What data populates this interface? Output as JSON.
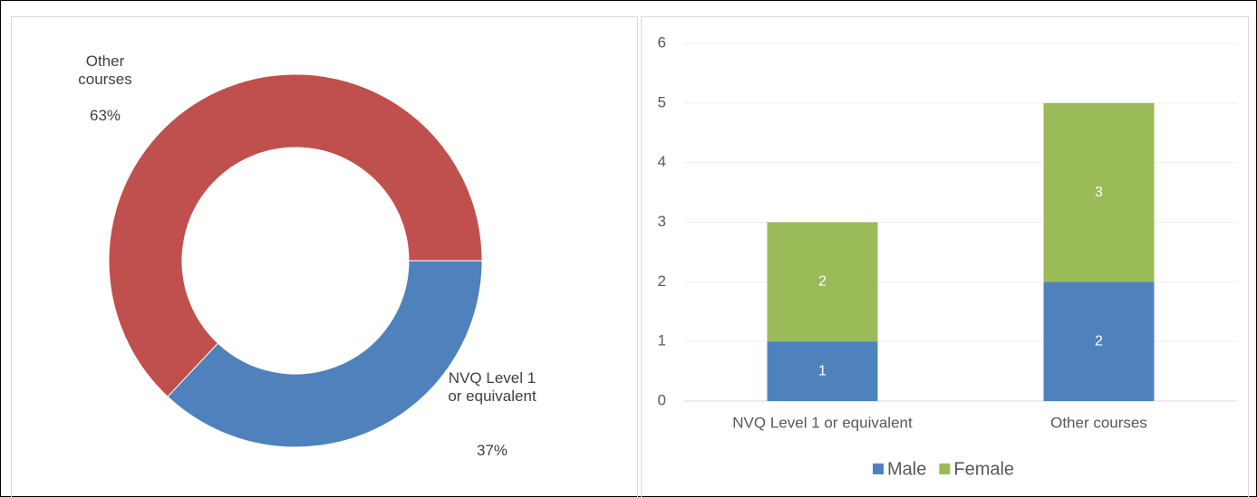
{
  "chart_data": [
    {
      "type": "donut",
      "categories": [
        "NVQ Level 1 or equivalent",
        "Other courses"
      ],
      "values": [
        37,
        63
      ],
      "value_labels": [
        "37%",
        "63%"
      ],
      "colors": [
        "#4f81bd",
        "#c0504d"
      ]
    },
    {
      "type": "stacked_bar",
      "categories": [
        "NVQ Level 1 or equivalent",
        "Other courses"
      ],
      "series": [
        {
          "name": "Male",
          "color": "#4f81bd",
          "values": [
            1,
            2
          ]
        },
        {
          "name": "Female",
          "color": "#9bbb59",
          "values": [
            2,
            3
          ]
        }
      ],
      "ylim": [
        0,
        6
      ],
      "yticks": [
        0,
        1,
        2,
        3,
        4,
        5,
        6
      ],
      "grid": true,
      "legend": "bottom"
    }
  ]
}
